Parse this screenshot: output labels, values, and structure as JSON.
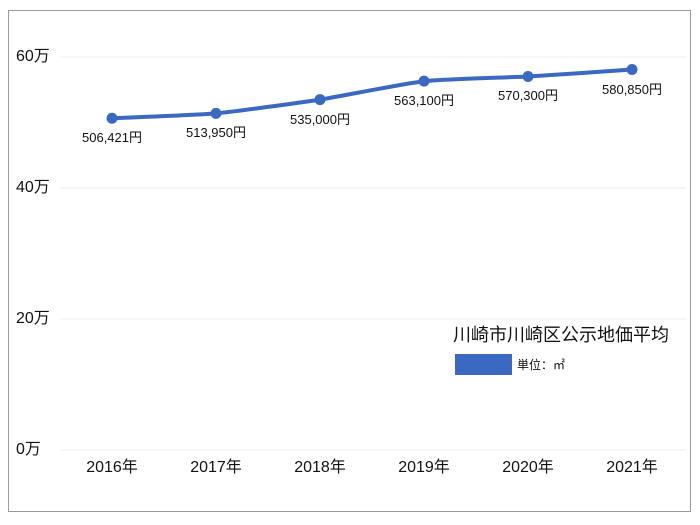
{
  "chart_data": {
    "type": "line",
    "title": "川崎市川崎区公示地価平均",
    "legend": {
      "swatch_color": "#3b69c2",
      "unit_label": "単位：㎡",
      "position": "inside-bottom-right"
    },
    "categories": [
      "2016年",
      "2017年",
      "2018年",
      "2019年",
      "2020年",
      "2021年"
    ],
    "series": [
      {
        "name": "川崎市川崎区公示地価平均",
        "values": [
          506421,
          513950,
          535000,
          563100,
          570300,
          580850
        ],
        "point_labels": [
          "506,421円",
          "513,950円",
          "535,000円",
          "563,100円",
          "570,300円",
          "580,850円"
        ],
        "color": "#3b69c2"
      }
    ],
    "xlabel": "",
    "ylabel": "",
    "ylim": [
      0,
      600000
    ],
    "yticks": [
      {
        "value": 0,
        "label": "0万"
      },
      {
        "value": 200000,
        "label": "20万"
      },
      {
        "value": 400000,
        "label": "40万"
      },
      {
        "value": 600000,
        "label": "60万"
      }
    ],
    "grid": true,
    "gridline_color": "#ececec",
    "panel_border_color": "#9a9a9a",
    "background_color": "#ffffff"
  }
}
